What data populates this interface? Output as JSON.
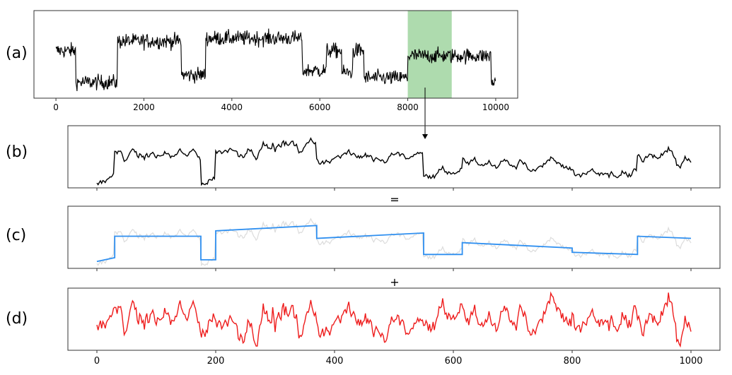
{
  "panels": {
    "a": "(a)",
    "b": "(b)",
    "c": "(c)",
    "d": "(d)"
  },
  "operators": {
    "equals": "=",
    "plus": "+"
  },
  "colors": {
    "raw": "#000000",
    "trend": "#2e8ff0",
    "residual": "#ee1c1c",
    "ghost": "#dcdcdc",
    "highlight": "#82c882"
  },
  "chart_data": [
    {
      "type": "line",
      "panel": "(a)",
      "x_range": [
        0,
        10000
      ],
      "xlim": [
        -500,
        10500
      ],
      "xticks": [
        0,
        2000,
        4000,
        6000,
        8000,
        10000
      ],
      "highlight_range": [
        8000,
        9000
      ],
      "series": [
        {
          "regime_levels": [
            {
              "x": [
                0,
                450
              ],
              "level": 0.55
            },
            {
              "x": [
                450,
                1400
              ],
              "level": 0.12
            },
            {
              "x": [
                1400,
                2850
              ],
              "level": 0.68
            },
            {
              "x": [
                2850,
                3400
              ],
              "level": 0.22
            },
            {
              "x": [
                3400,
                5600
              ],
              "level": 0.72
            },
            {
              "x": [
                5600,
                6150
              ],
              "level": 0.28
            },
            {
              "x": [
                6150,
                6500
              ],
              "level": 0.55
            },
            {
              "x": [
                6500,
                6750
              ],
              "level": 0.25
            },
            {
              "x": [
                6750,
                7000
              ],
              "level": 0.55
            },
            {
              "x": [
                7000,
                8000
              ],
              "level": 0.18
            },
            {
              "x": [
                8000,
                9900
              ],
              "level": 0.48
            },
            {
              "x": [
                9900,
                10100
              ],
              "level": 0.12
            }
          ]
        }
      ]
    },
    {
      "type": "line",
      "panel": "(b)",
      "x_range": [
        0,
        1000
      ],
      "series": [
        {
          "role": "zoomed segment of (a)"
        }
      ]
    },
    {
      "type": "line",
      "panel": "(c)",
      "x_range": [
        0,
        1000
      ],
      "series": [
        {
          "role": "piecewise linear trend",
          "points": [
            [
              0,
              0.05
            ],
            [
              30,
              0.12
            ],
            [
              30,
              0.52
            ],
            [
              175,
              0.52
            ],
            [
              175,
              0.08
            ],
            [
              200,
              0.08
            ],
            [
              200,
              0.62
            ],
            [
              370,
              0.72
            ],
            [
              370,
              0.48
            ],
            [
              550,
              0.58
            ],
            [
              550,
              0.18
            ],
            [
              615,
              0.18
            ],
            [
              615,
              0.4
            ],
            [
              800,
              0.3
            ],
            [
              800,
              0.22
            ],
            [
              910,
              0.18
            ],
            [
              910,
              0.52
            ],
            [
              1000,
              0.48
            ]
          ]
        }
      ]
    },
    {
      "type": "line",
      "panel": "(d)",
      "x_range": [
        0,
        1000
      ],
      "xticks": [
        0,
        200,
        400,
        600,
        800,
        1000
      ],
      "series": [
        {
          "role": "residual"
        }
      ]
    }
  ]
}
